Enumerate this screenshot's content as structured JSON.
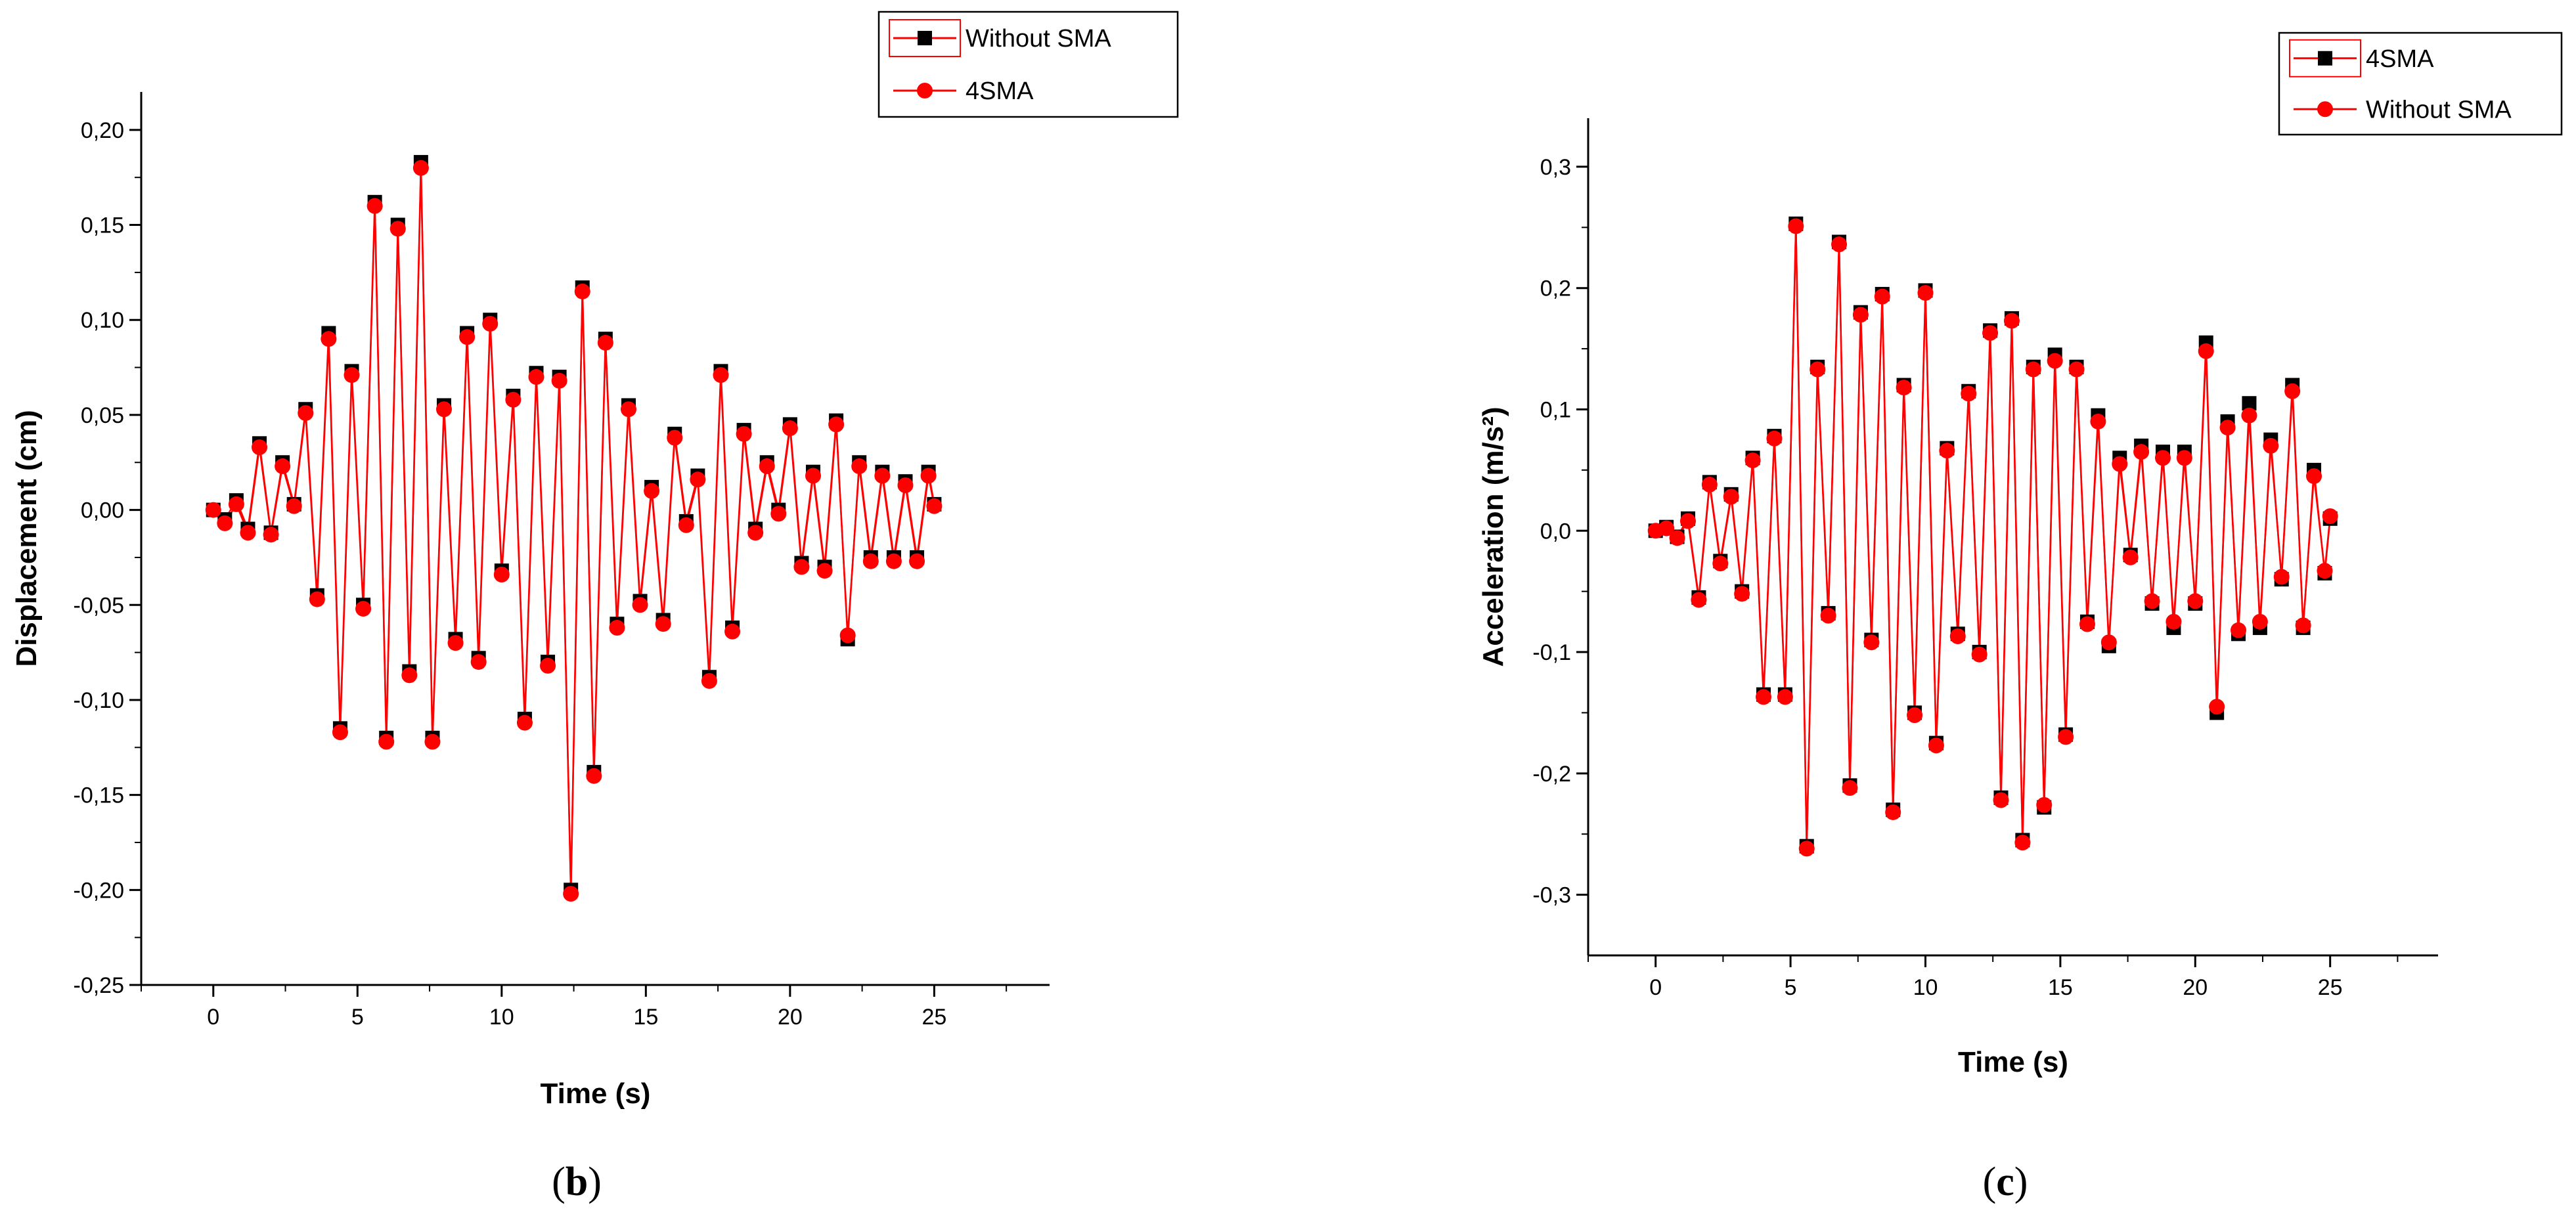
{
  "chart_data": [
    {
      "type": "line",
      "panel": "b",
      "caption": "(b)",
      "caption_letter": "b",
      "xlabel": "Time (s)",
      "ylabel": "Displacement (cm)",
      "xlim": [
        -2.5,
        29
      ],
      "ylim": [
        -0.25,
        0.22
      ],
      "xticks": [
        0,
        5,
        10,
        15,
        20,
        25
      ],
      "xtick_labels": [
        "0",
        "5",
        "10",
        "15",
        "20",
        "25"
      ],
      "yticks": [
        -0.25,
        -0.2,
        -0.15,
        -0.1,
        -0.05,
        0.0,
        0.05,
        0.1,
        0.15,
        0.2
      ],
      "ytick_labels": [
        "-0,25",
        "-0,20",
        "-0,15",
        "-0,10",
        "-0,05",
        "0,00",
        "0,05",
        "0,10",
        "0,15",
        "0,20"
      ],
      "legend_position": "top-right",
      "series": [
        {
          "name": "Without SMA",
          "marker": "square",
          "color": "#000000",
          "x": [
            0.0,
            0.4,
            0.8,
            1.2,
            1.6,
            2.0,
            2.4,
            2.8,
            3.2,
            3.6,
            4.0,
            4.4,
            4.8,
            5.2,
            5.6,
            6.0,
            6.4,
            6.8,
            7.2,
            7.6,
            8.0,
            8.4,
            8.8,
            9.2,
            9.6,
            10.0,
            10.4,
            10.8,
            11.2,
            11.6,
            12.0,
            12.4,
            12.8,
            13.2,
            13.6,
            14.0,
            14.4,
            14.8,
            15.2,
            15.6,
            16.0,
            16.4,
            16.8,
            17.2,
            17.6,
            18.0,
            18.4,
            18.8,
            19.2,
            19.6,
            20.0,
            20.4,
            20.8,
            21.2,
            21.6,
            22.0,
            22.4,
            22.8,
            23.2,
            23.6,
            24.0,
            24.4,
            24.8,
            25.0
          ],
          "y": [
            0.0,
            -0.005,
            0.005,
            -0.01,
            0.035,
            -0.012,
            0.025,
            0.003,
            0.053,
            -0.045,
            0.093,
            -0.115,
            0.073,
            -0.05,
            0.162,
            -0.12,
            0.15,
            -0.085,
            0.183,
            -0.12,
            0.055,
            -0.068,
            0.093,
            -0.078,
            0.1,
            -0.032,
            0.06,
            -0.11,
            0.072,
            -0.08,
            0.07,
            -0.2,
            0.117,
            -0.138,
            0.09,
            -0.06,
            0.055,
            -0.048,
            0.012,
            -0.058,
            0.04,
            -0.006,
            0.018,
            -0.088,
            0.073,
            -0.062,
            0.042,
            -0.01,
            0.025,
            0.0,
            0.045,
            -0.028,
            0.02,
            -0.03,
            0.047,
            -0.068,
            0.025,
            -0.025,
            0.02,
            -0.025,
            0.015,
            -0.025,
            0.02,
            0.003
          ]
        },
        {
          "name": "4SMA",
          "marker": "circle",
          "color": "#ff0000",
          "x": [
            0.0,
            0.4,
            0.8,
            1.2,
            1.6,
            2.0,
            2.4,
            2.8,
            3.2,
            3.6,
            4.0,
            4.4,
            4.8,
            5.2,
            5.6,
            6.0,
            6.4,
            6.8,
            7.2,
            7.6,
            8.0,
            8.4,
            8.8,
            9.2,
            9.6,
            10.0,
            10.4,
            10.8,
            11.2,
            11.6,
            12.0,
            12.4,
            12.8,
            13.2,
            13.6,
            14.0,
            14.4,
            14.8,
            15.2,
            15.6,
            16.0,
            16.4,
            16.8,
            17.2,
            17.6,
            18.0,
            18.4,
            18.8,
            19.2,
            19.6,
            20.0,
            20.4,
            20.8,
            21.2,
            21.6,
            22.0,
            22.4,
            22.8,
            23.2,
            23.6,
            24.0,
            24.4,
            24.8,
            25.0
          ],
          "y": [
            0.0,
            -0.007,
            0.003,
            -0.012,
            0.033,
            -0.013,
            0.023,
            0.002,
            0.051,
            -0.047,
            0.09,
            -0.117,
            0.071,
            -0.052,
            0.16,
            -0.122,
            0.148,
            -0.087,
            0.18,
            -0.122,
            0.053,
            -0.07,
            0.091,
            -0.08,
            0.098,
            -0.034,
            0.058,
            -0.112,
            0.07,
            -0.082,
            0.068,
            -0.202,
            0.115,
            -0.14,
            0.088,
            -0.062,
            0.053,
            -0.05,
            0.01,
            -0.06,
            0.038,
            -0.008,
            0.016,
            -0.09,
            0.071,
            -0.064,
            0.04,
            -0.012,
            0.023,
            -0.002,
            0.043,
            -0.03,
            0.018,
            -0.032,
            0.045,
            -0.066,
            0.023,
            -0.027,
            0.018,
            -0.027,
            0.013,
            -0.027,
            0.018,
            0.002
          ]
        }
      ]
    },
    {
      "type": "line",
      "panel": "c",
      "caption": "(c)",
      "caption_letter": "c",
      "xlabel": "Time (s)",
      "ylabel": "Acceleration (m/s²)",
      "xlim": [
        -2.5,
        29
      ],
      "ylim": [
        -0.35,
        0.34
      ],
      "xticks": [
        0,
        5,
        10,
        15,
        20,
        25
      ],
      "xtick_labels": [
        "0",
        "5",
        "10",
        "15",
        "20",
        "25"
      ],
      "yticks": [
        -0.3,
        -0.2,
        -0.1,
        0.0,
        0.1,
        0.2,
        0.3
      ],
      "ytick_labels": [
        "-0,3",
        "-0,2",
        "-0,1",
        "0,0",
        "0,1",
        "0,2",
        "0,3"
      ],
      "legend_position": "top-right",
      "series": [
        {
          "name": "4SMA",
          "marker": "square",
          "color": "#000000",
          "x": [
            0.0,
            0.4,
            0.8,
            1.2,
            1.6,
            2.0,
            2.4,
            2.8,
            3.2,
            3.6,
            4.0,
            4.4,
            4.8,
            5.2,
            5.6,
            6.0,
            6.4,
            6.8,
            7.2,
            7.6,
            8.0,
            8.4,
            8.8,
            9.2,
            9.6,
            10.0,
            10.4,
            10.8,
            11.2,
            11.6,
            12.0,
            12.4,
            12.8,
            13.2,
            13.6,
            14.0,
            14.4,
            14.8,
            15.2,
            15.6,
            16.0,
            16.4,
            16.8,
            17.2,
            17.6,
            18.0,
            18.4,
            18.8,
            19.2,
            19.6,
            20.0,
            20.4,
            20.8,
            21.2,
            21.6,
            22.0,
            22.4,
            22.8,
            23.2,
            23.6,
            24.0,
            24.4,
            24.8,
            25.0
          ],
          "y": [
            0.0,
            0.003,
            -0.005,
            0.01,
            -0.055,
            0.04,
            -0.025,
            0.03,
            -0.05,
            0.06,
            -0.135,
            0.078,
            -0.135,
            0.253,
            -0.26,
            0.135,
            -0.068,
            0.238,
            -0.21,
            0.18,
            -0.09,
            0.195,
            -0.23,
            0.12,
            -0.15,
            0.198,
            -0.175,
            0.068,
            -0.085,
            0.115,
            -0.1,
            0.165,
            -0.22,
            0.175,
            -0.255,
            0.135,
            -0.228,
            0.145,
            -0.168,
            0.135,
            -0.075,
            0.095,
            -0.095,
            0.06,
            -0.02,
            0.07,
            -0.06,
            0.065,
            -0.08,
            0.065,
            -0.06,
            0.155,
            -0.15,
            0.09,
            -0.085,
            0.105,
            -0.08,
            0.075,
            -0.04,
            0.12,
            -0.08,
            0.05,
            -0.035,
            0.01
          ]
        },
        {
          "name": "Without SMA",
          "marker": "circle",
          "color": "#ff0000",
          "x": [
            0.0,
            0.4,
            0.8,
            1.2,
            1.6,
            2.0,
            2.4,
            2.8,
            3.2,
            3.6,
            4.0,
            4.4,
            4.8,
            5.2,
            5.6,
            6.0,
            6.4,
            6.8,
            7.2,
            7.6,
            8.0,
            8.4,
            8.8,
            9.2,
            9.6,
            10.0,
            10.4,
            10.8,
            11.2,
            11.6,
            12.0,
            12.4,
            12.8,
            13.2,
            13.6,
            14.0,
            14.4,
            14.8,
            15.2,
            15.6,
            16.0,
            16.4,
            16.8,
            17.2,
            17.6,
            18.0,
            18.4,
            18.8,
            19.2,
            19.6,
            20.0,
            20.4,
            20.8,
            21.2,
            21.6,
            22.0,
            22.4,
            22.8,
            23.2,
            23.6,
            24.0,
            24.4,
            24.8,
            25.0
          ],
          "y": [
            0.0,
            0.002,
            -0.006,
            0.008,
            -0.057,
            0.038,
            -0.027,
            0.028,
            -0.052,
            0.058,
            -0.137,
            0.076,
            -0.137,
            0.251,
            -0.262,
            0.133,
            -0.07,
            0.236,
            -0.212,
            0.178,
            -0.092,
            0.193,
            -0.232,
            0.118,
            -0.152,
            0.196,
            -0.177,
            0.066,
            -0.087,
            0.113,
            -0.102,
            0.163,
            -0.222,
            0.173,
            -0.257,
            0.133,
            -0.226,
            0.14,
            -0.17,
            0.133,
            -0.077,
            0.09,
            -0.092,
            0.055,
            -0.022,
            0.065,
            -0.058,
            0.06,
            -0.075,
            0.06,
            -0.058,
            0.148,
            -0.145,
            0.085,
            -0.082,
            0.095,
            -0.075,
            0.07,
            -0.038,
            0.115,
            -0.078,
            0.045,
            -0.033,
            0.012
          ]
        }
      ]
    }
  ]
}
